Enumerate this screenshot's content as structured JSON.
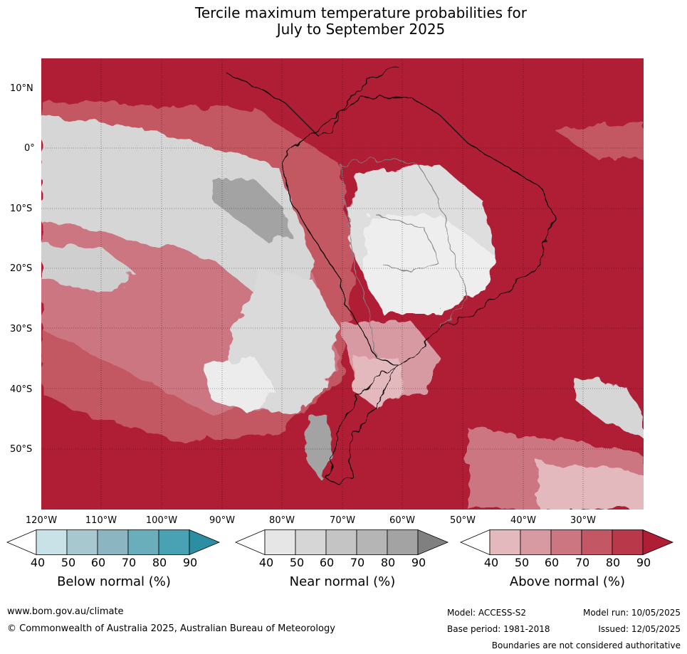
{
  "title": {
    "line1": "Tercile maximum temperature probabilities for",
    "line2": "July to September 2025"
  },
  "axes": {
    "lat_labels": [
      "10°N",
      "0°",
      "10°S",
      "20°S",
      "30°S",
      "40°S",
      "50°S"
    ],
    "lon_labels": [
      "120°W",
      "110°W",
      "100°W",
      "90°W",
      "80°W",
      "70°W",
      "60°W",
      "50°W",
      "40°W",
      "30°W"
    ],
    "lat_range": [
      -60,
      15
    ],
    "lon_range": [
      -120,
      -20
    ],
    "grid": true
  },
  "colorbars": [
    {
      "title": "Below normal (%)",
      "ticks": [
        "40",
        "50",
        "60",
        "70",
        "80",
        "90"
      ],
      "colors": [
        "#ffffff",
        "#c9e2e8",
        "#a7c8ce",
        "#8bb6c1",
        "#6aaebc",
        "#48a2b4",
        "#2b8ea3"
      ]
    },
    {
      "title": "Near normal (%)",
      "ticks": [
        "40",
        "50",
        "60",
        "70",
        "80",
        "90"
      ],
      "colors": [
        "#ffffff",
        "#e6e6e6",
        "#d6d6d6",
        "#c4c4c4",
        "#b5b5b5",
        "#a3a3a3",
        "#808080"
      ]
    },
    {
      "title": "Above normal (%)",
      "ticks": [
        "40",
        "50",
        "60",
        "70",
        "80",
        "90"
      ],
      "colors": [
        "#ffffff",
        "#e4b9be",
        "#d79aa3",
        "#cc7681",
        "#c35864",
        "#b9394a",
        "#b01e36"
      ]
    }
  ],
  "footer": {
    "website": "www.bom.gov.au/climate",
    "copyright": "© Commonwealth of Australia 2025, Australian Bureau of Meteorology",
    "model": "Model: ACCESS-S2",
    "base_period": "Base period: 1981-2018",
    "model_run": "Model run: 10/05/2025",
    "issued": "Issued: 12/05/2025",
    "disclaimer": "Boundaries are not considered authoritative"
  }
}
